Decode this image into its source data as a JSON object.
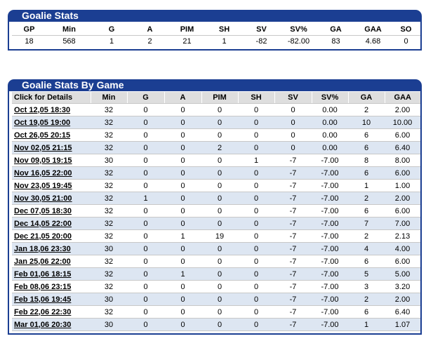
{
  "summary": {
    "title": "Goalie Stats",
    "headers": [
      "GP",
      "Min",
      "G",
      "A",
      "PIM",
      "SH",
      "SV",
      "SV%",
      "GA",
      "GAA",
      "SO"
    ],
    "values": [
      "18",
      "568",
      "1",
      "2",
      "21",
      "1",
      "-82",
      "-82.00",
      "83",
      "4.68",
      "0"
    ]
  },
  "games": {
    "title": "Goalie Stats By Game",
    "headers": [
      "Click for Details",
      "Min",
      "G",
      "A",
      "PIM",
      "SH",
      "SV",
      "SV%",
      "GA",
      "GAA"
    ],
    "rows": [
      [
        "Oct 12,05 18:30",
        "32",
        "0",
        "0",
        "0",
        "0",
        "0",
        "0.00",
        "2",
        "2.00"
      ],
      [
        "Oct 19,05 19:00",
        "32",
        "0",
        "0",
        "0",
        "0",
        "0",
        "0.00",
        "10",
        "10.00"
      ],
      [
        "Oct 26,05 20:15",
        "32",
        "0",
        "0",
        "0",
        "0",
        "0",
        "0.00",
        "6",
        "6.00"
      ],
      [
        "Nov 02,05 21:15",
        "32",
        "0",
        "0",
        "2",
        "0",
        "0",
        "0.00",
        "6",
        "6.40"
      ],
      [
        "Nov 09,05 19:15",
        "30",
        "0",
        "0",
        "0",
        "1",
        "-7",
        "-7.00",
        "8",
        "8.00"
      ],
      [
        "Nov 16,05 22:00",
        "32",
        "0",
        "0",
        "0",
        "0",
        "-7",
        "-7.00",
        "6",
        "6.00"
      ],
      [
        "Nov 23,05 19:45",
        "32",
        "0",
        "0",
        "0",
        "0",
        "-7",
        "-7.00",
        "1",
        "1.00"
      ],
      [
        "Nov 30,05 21:00",
        "32",
        "1",
        "0",
        "0",
        "0",
        "-7",
        "-7.00",
        "2",
        "2.00"
      ],
      [
        "Dec 07,05 18:30",
        "32",
        "0",
        "0",
        "0",
        "0",
        "-7",
        "-7.00",
        "6",
        "6.00"
      ],
      [
        "Dec 14,05 22:00",
        "32",
        "0",
        "0",
        "0",
        "0",
        "-7",
        "-7.00",
        "7",
        "7.00"
      ],
      [
        "Dec 21,05 20:00",
        "32",
        "0",
        "1",
        "19",
        "0",
        "-7",
        "-7.00",
        "2",
        "2.13"
      ],
      [
        "Jan 18,06 23:30",
        "30",
        "0",
        "0",
        "0",
        "0",
        "-7",
        "-7.00",
        "4",
        "4.00"
      ],
      [
        "Jan 25,06 22:00",
        "32",
        "0",
        "0",
        "0",
        "0",
        "-7",
        "-7.00",
        "6",
        "6.00"
      ],
      [
        "Feb 01,06 18:15",
        "32",
        "0",
        "1",
        "0",
        "0",
        "-7",
        "-7.00",
        "5",
        "5.00"
      ],
      [
        "Feb 08,06 23:15",
        "32",
        "0",
        "0",
        "0",
        "0",
        "-7",
        "-7.00",
        "3",
        "3.20"
      ],
      [
        "Feb 15,06 19:45",
        "30",
        "0",
        "0",
        "0",
        "0",
        "-7",
        "-7.00",
        "2",
        "2.00"
      ],
      [
        "Feb 22,06 22:30",
        "32",
        "0",
        "0",
        "0",
        "0",
        "-7",
        "-7.00",
        "6",
        "6.40"
      ],
      [
        "Mar 01,06 20:30",
        "30",
        "0",
        "0",
        "0",
        "0",
        "-7",
        "-7.00",
        "1",
        "1.07"
      ]
    ]
  }
}
